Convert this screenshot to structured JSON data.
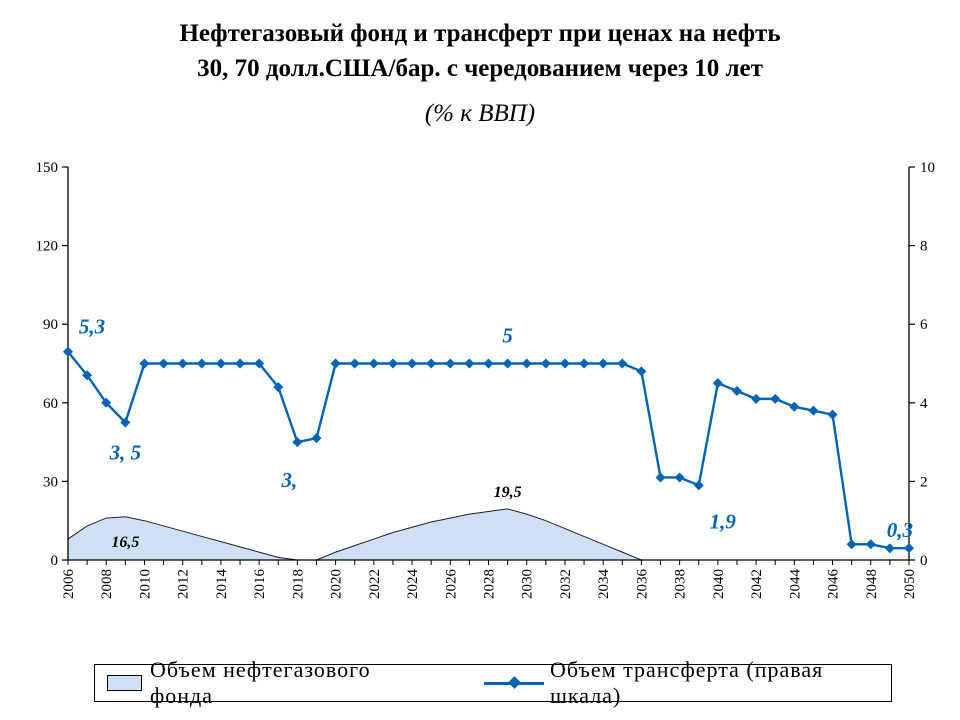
{
  "chart_data": {
    "type": "line",
    "title_line1": "Нефтегазовый фонд и трансферт при ценах на нефть",
    "title_line2": "30, 70 долл.США/бар. с чередованием через 10 лет",
    "subtitle": "(% к ВВП)",
    "x": [
      2006,
      2007,
      2008,
      2009,
      2010,
      2011,
      2012,
      2013,
      2014,
      2015,
      2016,
      2017,
      2018,
      2019,
      2020,
      2021,
      2022,
      2023,
      2024,
      2025,
      2026,
      2027,
      2028,
      2029,
      2030,
      2031,
      2032,
      2033,
      2034,
      2035,
      2036,
      2037,
      2038,
      2039,
      2040,
      2041,
      2042,
      2043,
      2044,
      2045,
      2046,
      2047,
      2048,
      2049,
      2050
    ],
    "x_tick_labels": [
      "2006",
      "2008",
      "2010",
      "2012",
      "2014",
      "2016",
      "2018",
      "2020",
      "2022",
      "2024",
      "2026",
      "2028",
      "2030",
      "2032",
      "2034",
      "2036",
      "2038",
      "2040",
      "2042",
      "2044",
      "2046",
      "2048",
      "2050"
    ],
    "ylim_left": [
      0,
      150
    ],
    "yticks_left": [
      "0",
      "30",
      "60",
      "90",
      "120",
      "150"
    ],
    "ylim_right": [
      0,
      10
    ],
    "yticks_right": [
      "0",
      "2",
      "4",
      "6",
      "8",
      "10"
    ],
    "series": [
      {
        "name": "Объем нефтегазового фонда",
        "type": "area",
        "axis": "left",
        "color": "#cfe0f4",
        "values": [
          8,
          13,
          16,
          16.5,
          15,
          13,
          11,
          9,
          7,
          5,
          3,
          1,
          0,
          0,
          3,
          5.5,
          8,
          10.5,
          12.5,
          14.5,
          16,
          17.5,
          18.5,
          19.5,
          17.5,
          15,
          12,
          9,
          6,
          3,
          0,
          0,
          0,
          0,
          0,
          0,
          0,
          0,
          0,
          0,
          0,
          0,
          0,
          0,
          0
        ]
      },
      {
        "name": "Объем трансферта (правая шкала)",
        "type": "line",
        "axis": "right",
        "color": "#0063b4",
        "values": [
          5.3,
          4.7,
          4.0,
          3.5,
          5.0,
          5.0,
          5.0,
          5.0,
          5.0,
          5.0,
          5.0,
          4.4,
          3.0,
          3.1,
          5.0,
          5.0,
          5.0,
          5.0,
          5.0,
          5.0,
          5.0,
          5.0,
          5.0,
          5.0,
          5.0,
          5.0,
          5.0,
          5.0,
          5.0,
          5.0,
          4.8,
          2.1,
          2.1,
          1.9,
          4.5,
          4.3,
          4.1,
          4.1,
          3.9,
          3.8,
          3.7,
          0.4,
          0.4,
          0.3,
          0.3
        ]
      }
    ],
    "annotations": [
      {
        "text": "5,3",
        "series": "line",
        "year": 2006
      },
      {
        "text": "3, 5",
        "series": "line",
        "year": 2009
      },
      {
        "text": "3,",
        "series": "line",
        "year": 2018
      },
      {
        "text": "5",
        "series": "line",
        "year": 2029
      },
      {
        "text": "1,9",
        "series": "line",
        "year": 2039
      },
      {
        "text": "0,3",
        "series": "line",
        "year": 2049
      },
      {
        "text": "16,5",
        "series": "area",
        "year": 2009
      },
      {
        "text": "19,5",
        "series": "area",
        "year": 2029
      }
    ],
    "legend_position": "bottom",
    "grid": false
  },
  "legend": {
    "area_label": "Объем нефтегазового фонда",
    "line_label": "Объем трансферта (правая шкала)"
  }
}
